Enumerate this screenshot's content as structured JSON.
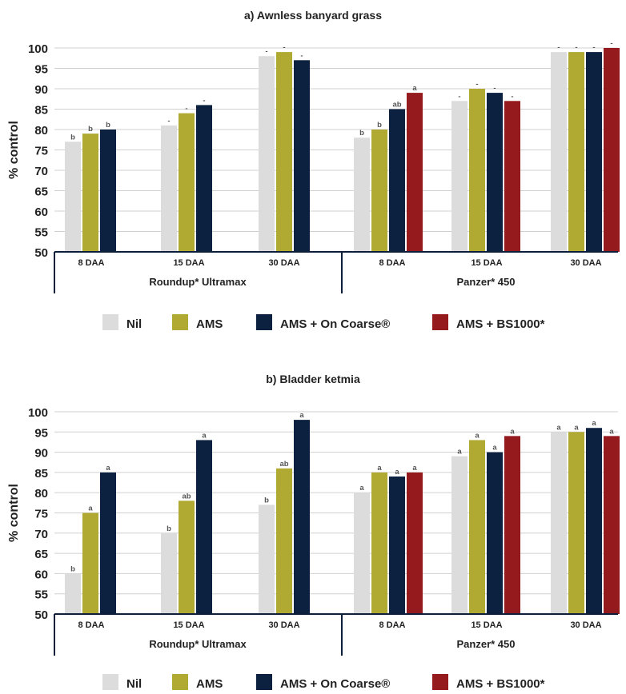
{
  "colors": {
    "Nil": "#dcdcdc",
    "AMS": "#b1aa32",
    "AMS + On Coarse®": "#0c2140",
    "AMS + BS1000*": "#941a1d"
  },
  "chart_data": [
    {
      "type": "bar",
      "title": "a) Awnless banyard grass",
      "ylabel": "% control",
      "ylim": [
        50,
        100
      ],
      "yticks": [
        50,
        55,
        60,
        65,
        70,
        75,
        80,
        85,
        90,
        95,
        100
      ],
      "grid": true,
      "legend_position": "bottom",
      "legend": [
        "Nil",
        "AMS",
        "AMS + On Coarse®",
        "AMS + BS1000*"
      ],
      "groups": [
        {
          "name": "Roundup* Ultramax",
          "categories": [
            {
              "label": "8 DAA",
              "bars": [
                {
                  "series": "Nil",
                  "value": 77,
                  "letter": "b"
                },
                {
                  "series": "AMS",
                  "value": 79,
                  "letter": "b"
                },
                {
                  "series": "AMS + On Coarse®",
                  "value": 80,
                  "letter": "b"
                }
              ]
            },
            {
              "label": "15 DAA",
              "bars": [
                {
                  "series": "Nil",
                  "value": 81,
                  "letter": "-"
                },
                {
                  "series": "AMS",
                  "value": 84,
                  "letter": "-"
                },
                {
                  "series": "AMS + On Coarse®",
                  "value": 86,
                  "letter": "-"
                }
              ]
            },
            {
              "label": "30 DAA",
              "bars": [
                {
                  "series": "Nil",
                  "value": 98,
                  "letter": "-"
                },
                {
                  "series": "AMS",
                  "value": 99,
                  "letter": "-"
                },
                {
                  "series": "AMS + On Coarse®",
                  "value": 97,
                  "letter": "-"
                }
              ]
            }
          ]
        },
        {
          "name": "Panzer* 450",
          "categories": [
            {
              "label": "8 DAA",
              "bars": [
                {
                  "series": "Nil",
                  "value": 78,
                  "letter": "b"
                },
                {
                  "series": "AMS",
                  "value": 80,
                  "letter": "b"
                },
                {
                  "series": "AMS + On Coarse®",
                  "value": 85,
                  "letter": "ab"
                },
                {
                  "series": "AMS + BS1000*",
                  "value": 89,
                  "letter": "a"
                }
              ]
            },
            {
              "label": "15 DAA",
              "bars": [
                {
                  "series": "Nil",
                  "value": 87,
                  "letter": "-"
                },
                {
                  "series": "AMS",
                  "value": 90,
                  "letter": "-"
                },
                {
                  "series": "AMS + On Coarse®",
                  "value": 89,
                  "letter": "-"
                },
                {
                  "series": "AMS + BS1000*",
                  "value": 87,
                  "letter": "-"
                }
              ]
            },
            {
              "label": "30 DAA",
              "bars": [
                {
                  "series": "Nil",
                  "value": 99,
                  "letter": "-"
                },
                {
                  "series": "AMS",
                  "value": 99,
                  "letter": "-"
                },
                {
                  "series": "AMS + On Coarse®",
                  "value": 99,
                  "letter": "-"
                },
                {
                  "series": "AMS + BS1000*",
                  "value": 100,
                  "letter": "-"
                }
              ]
            }
          ]
        }
      ]
    },
    {
      "type": "bar",
      "title": "b) Bladder ketmia",
      "ylabel": "% control",
      "ylim": [
        50,
        100
      ],
      "yticks": [
        50,
        55,
        60,
        65,
        70,
        75,
        80,
        85,
        90,
        95,
        100
      ],
      "grid": true,
      "legend_position": "bottom",
      "legend": [
        "Nil",
        "AMS",
        "AMS + On Coarse®",
        "AMS + BS1000*"
      ],
      "groups": [
        {
          "name": "Roundup* Ultramax",
          "categories": [
            {
              "label": "8 DAA",
              "bars": [
                {
                  "series": "Nil",
                  "value": 60,
                  "letter": "b"
                },
                {
                  "series": "AMS",
                  "value": 75,
                  "letter": "a"
                },
                {
                  "series": "AMS + On Coarse®",
                  "value": 85,
                  "letter": "a"
                }
              ]
            },
            {
              "label": "15 DAA",
              "bars": [
                {
                  "series": "Nil",
                  "value": 70,
                  "letter": "b"
                },
                {
                  "series": "AMS",
                  "value": 78,
                  "letter": "ab"
                },
                {
                  "series": "AMS + On Coarse®",
                  "value": 93,
                  "letter": "a"
                }
              ]
            },
            {
              "label": "30 DAA",
              "bars": [
                {
                  "series": "Nil",
                  "value": 77,
                  "letter": "b"
                },
                {
                  "series": "AMS",
                  "value": 86,
                  "letter": "ab"
                },
                {
                  "series": "AMS + On Coarse®",
                  "value": 98,
                  "letter": "a"
                }
              ]
            }
          ]
        },
        {
          "name": "Panzer* 450",
          "categories": [
            {
              "label": "8 DAA",
              "bars": [
                {
                  "series": "Nil",
                  "value": 80,
                  "letter": "a"
                },
                {
                  "series": "AMS",
                  "value": 85,
                  "letter": "a"
                },
                {
                  "series": "AMS + On Coarse®",
                  "value": 84,
                  "letter": "a"
                },
                {
                  "series": "AMS + BS1000*",
                  "value": 85,
                  "letter": "a"
                }
              ]
            },
            {
              "label": "15 DAA",
              "bars": [
                {
                  "series": "Nil",
                  "value": 89,
                  "letter": "a"
                },
                {
                  "series": "AMS",
                  "value": 93,
                  "letter": "a"
                },
                {
                  "series": "AMS + On Coarse®",
                  "value": 90,
                  "letter": "a"
                },
                {
                  "series": "AMS + BS1000*",
                  "value": 94,
                  "letter": "a"
                }
              ]
            },
            {
              "label": "30 DAA",
              "bars": [
                {
                  "series": "Nil",
                  "value": 95,
                  "letter": "a"
                },
                {
                  "series": "AMS",
                  "value": 95,
                  "letter": "a"
                },
                {
                  "series": "AMS + On Coarse®",
                  "value": 96,
                  "letter": "a"
                },
                {
                  "series": "AMS + BS1000*",
                  "value": 94,
                  "letter": "a"
                }
              ]
            }
          ]
        }
      ]
    }
  ]
}
